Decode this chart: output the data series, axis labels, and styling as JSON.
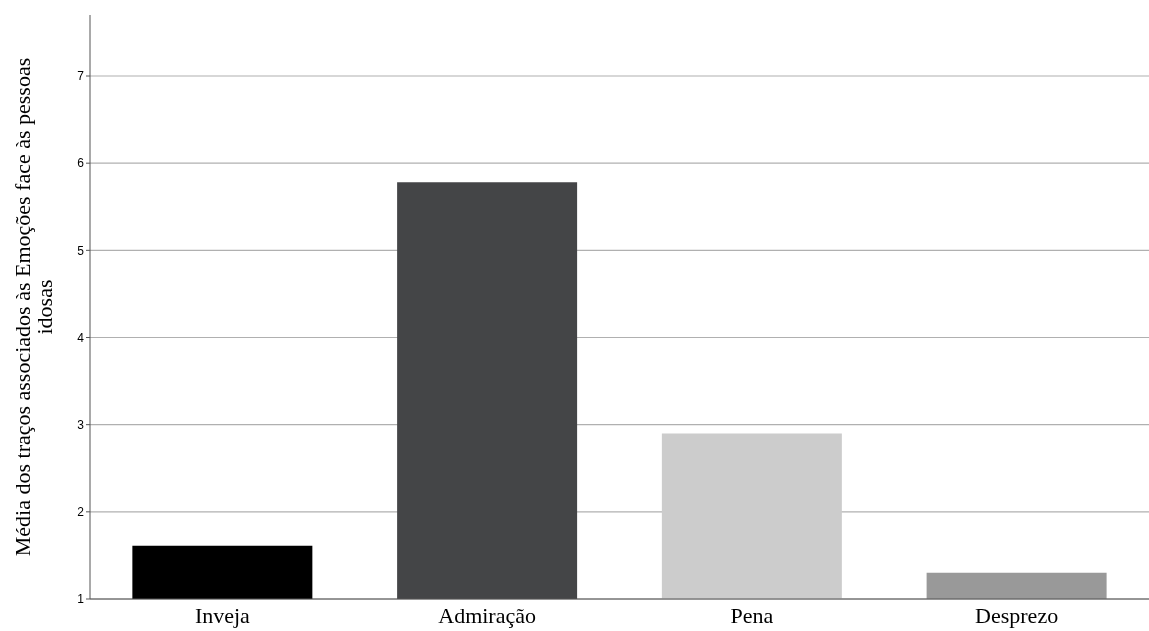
{
  "chart_data": {
    "type": "bar",
    "ylabel": "Média dos traços associados às Emoções face às pessoas idosas",
    "categories": [
      "Inveja",
      "Admiração",
      "Pena",
      "Desprezo"
    ],
    "values": [
      1.61,
      5.78,
      2.9,
      1.3
    ],
    "colors": [
      "#000000",
      "#444547",
      "#cccccc",
      "#999999"
    ],
    "ylim": [
      1,
      7.7
    ],
    "yticks": [
      1,
      2,
      3,
      4,
      5,
      6,
      7
    ],
    "grid": "y"
  }
}
